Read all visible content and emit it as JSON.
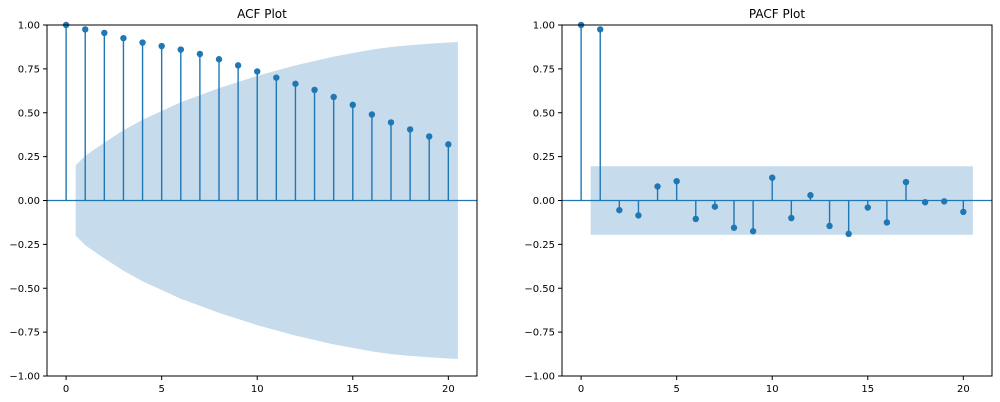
{
  "chart_data": [
    {
      "type": "stem",
      "title": "ACF Plot",
      "xlabel": "",
      "ylabel": "",
      "xlim": [
        -1,
        21.5
      ],
      "ylim": [
        -1.0,
        1.0
      ],
      "x_ticks": [
        0,
        5,
        10,
        15,
        20
      ],
      "y_ticks": [
        -1.0,
        -0.75,
        -0.5,
        -0.25,
        0.0,
        0.25,
        0.5,
        0.75,
        1.0
      ],
      "x_tick_labels": [
        "0",
        "5",
        "10",
        "15",
        "20"
      ],
      "y_tick_labels": [
        "−1.00",
        "−0.75",
        "−0.50",
        "−0.25",
        "0.00",
        "0.25",
        "0.50",
        "0.75",
        "1.00"
      ],
      "lags": [
        0,
        1,
        2,
        3,
        4,
        5,
        6,
        7,
        8,
        9,
        10,
        11,
        12,
        13,
        14,
        15,
        16,
        17,
        18,
        19,
        20
      ],
      "values": [
        1.0,
        0.975,
        0.955,
        0.925,
        0.9,
        0.88,
        0.86,
        0.835,
        0.805,
        0.77,
        0.735,
        0.7,
        0.665,
        0.63,
        0.59,
        0.545,
        0.49,
        0.445,
        0.405,
        0.365,
        0.32
      ],
      "confidence_band": {
        "lags": [
          0.5,
          1,
          2,
          3,
          4,
          5,
          6,
          7,
          8,
          9,
          10,
          11,
          12,
          13,
          14,
          15,
          16,
          17,
          18,
          19,
          20,
          20.5
        ],
        "upper": [
          0.2,
          0.255,
          0.33,
          0.4,
          0.46,
          0.51,
          0.56,
          0.6,
          0.64,
          0.675,
          0.71,
          0.74,
          0.77,
          0.795,
          0.82,
          0.84,
          0.86,
          0.875,
          0.885,
          0.893,
          0.9,
          0.903
        ],
        "lower": [
          -0.2,
          -0.255,
          -0.33,
          -0.4,
          -0.46,
          -0.51,
          -0.56,
          -0.6,
          -0.64,
          -0.675,
          -0.71,
          -0.74,
          -0.77,
          -0.795,
          -0.82,
          -0.84,
          -0.86,
          -0.875,
          -0.885,
          -0.893,
          -0.9,
          -0.903
        ]
      },
      "grid": false,
      "colors": {
        "stem": "#1f77b4",
        "band": "#c6dbec",
        "zero_line": "#1f77b4"
      }
    },
    {
      "type": "stem",
      "title": "PACF Plot",
      "xlabel": "",
      "ylabel": "",
      "xlim": [
        -1,
        21.5
      ],
      "ylim": [
        -1.0,
        1.0
      ],
      "x_ticks": [
        0,
        5,
        10,
        15,
        20
      ],
      "y_ticks": [
        -1.0,
        -0.75,
        -0.5,
        -0.25,
        0.0,
        0.25,
        0.5,
        0.75,
        1.0
      ],
      "x_tick_labels": [
        "0",
        "5",
        "10",
        "15",
        "20"
      ],
      "y_tick_labels": [
        "−1.00",
        "−0.75",
        "−0.50",
        "−0.25",
        "0.00",
        "0.25",
        "0.50",
        "0.75",
        "1.00"
      ],
      "lags": [
        0,
        1,
        2,
        3,
        4,
        5,
        6,
        7,
        8,
        9,
        10,
        11,
        12,
        13,
        14,
        15,
        16,
        17,
        18,
        19,
        20
      ],
      "values": [
        1.0,
        0.975,
        -0.055,
        -0.085,
        0.08,
        0.11,
        -0.105,
        -0.035,
        -0.155,
        -0.175,
        0.13,
        -0.1,
        0.03,
        -0.145,
        -0.19,
        -0.04,
        -0.125,
        0.105,
        -0.01,
        -0.005,
        -0.065
      ],
      "confidence_band": {
        "lags": [
          0.5,
          20.5
        ],
        "upper": [
          0.195,
          0.195
        ],
        "lower": [
          -0.195,
          -0.195
        ]
      },
      "grid": false,
      "colors": {
        "stem": "#1f77b4",
        "band": "#c6dbec",
        "zero_line": "#1f77b4"
      }
    }
  ]
}
